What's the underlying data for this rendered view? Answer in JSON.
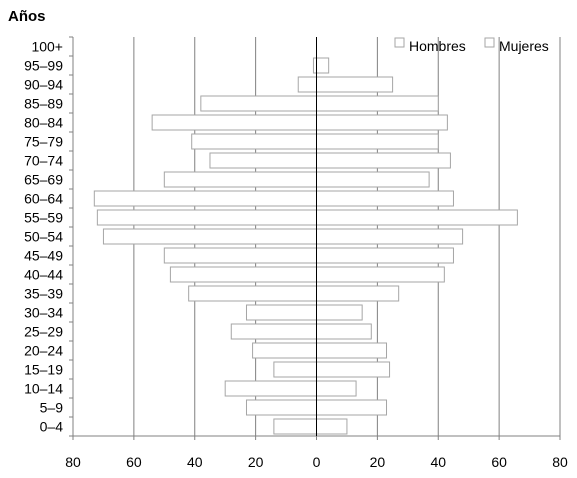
{
  "page": {
    "title": "Años"
  },
  "legend": {
    "hombres": "Hombres",
    "mujeres": "Mujeres"
  },
  "chart_data": {
    "type": "bar",
    "orientation": "horizontal",
    "subtype": "population-pyramid",
    "title": "Años",
    "categories": [
      "0‒4",
      "5‒9",
      "10‒14",
      "15‒19",
      "20‒24",
      "25‒29",
      "30‒34",
      "35‒39",
      "40‒44",
      "45‒49",
      "50‒54",
      "55‒59",
      "60‒64",
      "65‒69",
      "70‒74",
      "75‒79",
      "80‒84",
      "85‒89",
      "90‒94",
      "95‒99",
      "100+"
    ],
    "series": [
      {
        "name": "Hombres",
        "values": [
          14,
          23,
          30,
          14,
          21,
          28,
          23,
          42,
          48,
          50,
          70,
          72,
          73,
          50,
          35,
          41,
          54,
          38,
          6,
          1,
          0
        ]
      },
      {
        "name": "Mujeres",
        "values": [
          10,
          23,
          13,
          24,
          23,
          18,
          15,
          27,
          42,
          45,
          48,
          66,
          45,
          37,
          44,
          40,
          43,
          40,
          25,
          4,
          0
        ]
      }
    ],
    "x_ticks": [
      "80",
      "60",
      "40",
      "20",
      "0",
      "20",
      "40",
      "60",
      "80"
    ],
    "xlim": [
      -80,
      80
    ],
    "grid": true,
    "legend_position": "top-right",
    "colors": {
      "bar_fill": "#ffffff",
      "bar_stroke": "#a6a6a6",
      "grid": "#808080",
      "axis": "#000000"
    }
  }
}
